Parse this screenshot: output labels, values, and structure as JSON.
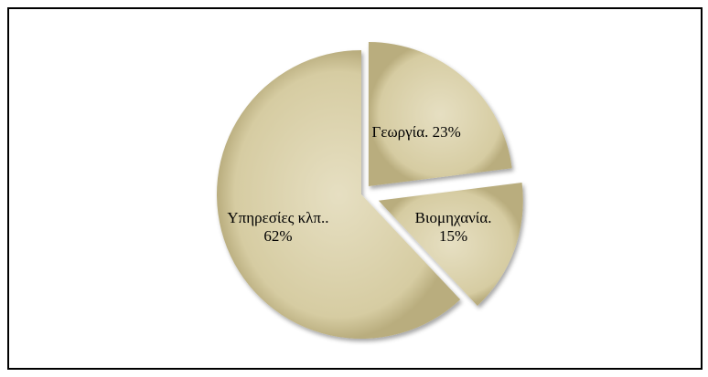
{
  "chart_data": {
    "type": "pie",
    "categories": [
      "Γεωργία.",
      "Βιομηχανία.",
      "Υπηρεσίες κλπ.."
    ],
    "values": [
      23,
      15,
      62
    ],
    "value_labels": [
      "23%",
      "15%",
      "62%"
    ],
    "color": "#d6cca2"
  }
}
